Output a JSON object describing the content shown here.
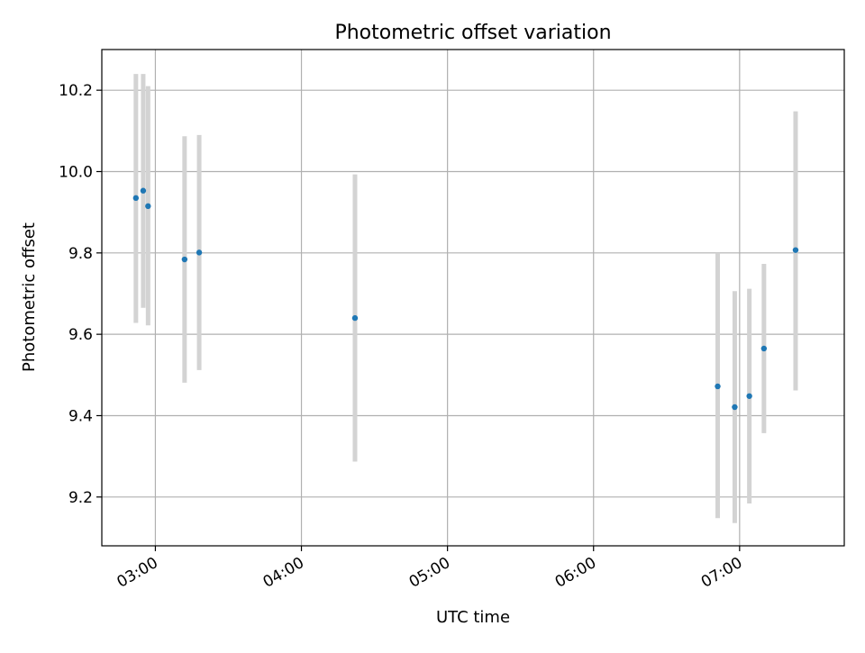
{
  "chart_data": {
    "type": "scatter",
    "title": "Photometric offset variation",
    "xlabel": "UTC time",
    "ylabel": "Photometric offset",
    "x_unit": "UTC time of day (HH:MM)",
    "xlim": [
      "02:38",
      "07:43"
    ],
    "ylim": [
      9.08,
      10.3
    ],
    "x_ticks": [
      "03:00",
      "04:00",
      "05:00",
      "06:00",
      "07:00"
    ],
    "y_ticks": [
      9.2,
      9.4,
      9.6,
      9.8,
      10.0,
      10.2
    ],
    "y_tick_labels": [
      "9.2",
      "9.4",
      "9.6",
      "9.8",
      "10.0",
      "10.2"
    ],
    "grid": true,
    "legend": "none",
    "marker_color": "#1f77b4",
    "errorbar_color": "#d3d3d3",
    "series": [
      {
        "points": [
          {
            "t": "02:52",
            "y": 9.935,
            "y_low": 9.628,
            "y_high": 10.24
          },
          {
            "t": "02:55",
            "y": 9.953,
            "y_low": 9.665,
            "y_high": 10.24
          },
          {
            "t": "02:57",
            "y": 9.915,
            "y_low": 9.622,
            "y_high": 10.21
          },
          {
            "t": "03:12",
            "y": 9.784,
            "y_low": 9.481,
            "y_high": 10.087
          },
          {
            "t": "03:18",
            "y": 9.801,
            "y_low": 9.512,
            "y_high": 10.09
          },
          {
            "t": "04:22",
            "y": 9.64,
            "y_low": 9.287,
            "y_high": 9.993
          },
          {
            "t": "06:51",
            "y": 9.472,
            "y_low": 9.148,
            "y_high": 9.8
          },
          {
            "t": "06:58",
            "y": 9.421,
            "y_low": 9.136,
            "y_high": 9.706
          },
          {
            "t": "07:04",
            "y": 9.448,
            "y_low": 9.184,
            "y_high": 9.712
          },
          {
            "t": "07:10",
            "y": 9.565,
            "y_low": 9.357,
            "y_high": 9.773
          },
          {
            "t": "07:23",
            "y": 9.807,
            "y_low": 9.462,
            "y_high": 10.148
          }
        ]
      }
    ]
  }
}
